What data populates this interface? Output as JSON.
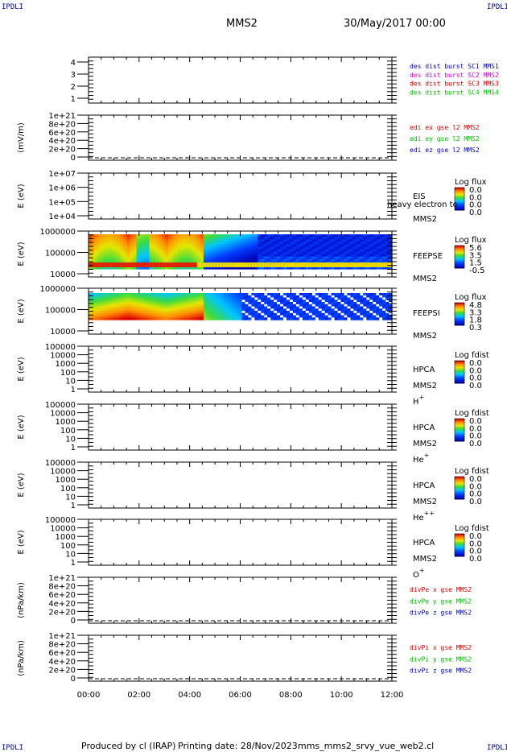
{
  "header": {
    "title": "MMS2",
    "date": "30/May/2017 00:00"
  },
  "corners": {
    "tl": "IPDLI",
    "tr": "IPDLI",
    "bl": "IPDLI",
    "br": "IPDLI"
  },
  "footer": {
    "produced": "Produced by cl (IRAP)",
    "printed": "Printing date: 28/Nov/2023",
    "file": "mms_mms2_srvy_vue_web2.cl"
  },
  "chart_data": {
    "type": "heatmap",
    "x_ticks": [
      "00:00",
      "02:00",
      "04:00",
      "06:00",
      "08:00",
      "10:00",
      "12:00"
    ],
    "colors": {
      "red": "#d40000",
      "magenta": "#d400d4",
      "green": "#00c000",
      "blue": "#0000c8"
    },
    "panels": [
      {
        "id": "des",
        "ylabel": "",
        "yticks": [
          "4",
          "3",
          "2",
          "1"
        ],
        "kind": "empty",
        "right": [
          {
            "text": "des dist burst SC1 MMS1",
            "color": "blue"
          },
          {
            "text": "des dist burst SC2 MMS2",
            "color": "magenta"
          },
          {
            "text": "des dist burst SC3 MMS3",
            "color": "red"
          },
          {
            "text": "des dist burst SC4 MMS4",
            "color": "green"
          }
        ]
      },
      {
        "id": "edi",
        "ylabel": "(mV/m)",
        "yticks": [
          "1e+21",
          "8e+20",
          "6e+20",
          "4e+20",
          "2e+20",
          "0"
        ],
        "kind": "dashed",
        "right": [
          {
            "text": "edi ex gse l2 MMS2",
            "color": "red"
          },
          {
            "text": "edi ey gse l2 MMS2",
            "color": "green"
          },
          {
            "text": "edi ez gse l2 MMS2",
            "color": "blue"
          }
        ]
      },
      {
        "id": "eis",
        "ylabel": "E (eV)",
        "yticks": [
          "1e+07",
          "1e+06",
          "1e+05",
          "1e+04"
        ],
        "kind": "empty",
        "right": [
          {
            "text": "EIS"
          },
          {
            "text": "MMS2"
          },
          {
            "text": "heavy electron to",
            "overlap": true
          }
        ],
        "cbar": {
          "title": "Log flux",
          "ticks": [
            "0.0",
            "0.0",
            "0.0",
            "0.0"
          ]
        }
      },
      {
        "id": "feepse",
        "ylabel": "E (eV)",
        "yticks": [
          "1000000",
          "100000",
          "10000"
        ],
        "kind": "feeps_e",
        "right": [
          {
            "text": "FEEPSE"
          },
          {
            "text": "MMS2"
          }
        ],
        "cbar": {
          "title": "Log flux",
          "ticks": [
            "5.6",
            "3.5",
            "1.5",
            "-0.5"
          ]
        }
      },
      {
        "id": "feepsi",
        "ylabel": "E (eV)",
        "yticks": [
          "1000000",
          "100000",
          "10000"
        ],
        "kind": "feeps_i",
        "right": [
          {
            "text": "FEEPSI"
          },
          {
            "text": "MMS2"
          }
        ],
        "cbar": {
          "title": "Log flux",
          "ticks": [
            "4.8",
            "3.3",
            "1.8",
            "0.3"
          ]
        }
      },
      {
        "id": "hpca_h",
        "ylabel": "E (eV)",
        "yticks": [
          "100000",
          "10000",
          "1000",
          "100",
          "10",
          "1"
        ],
        "kind": "empty",
        "right": [
          {
            "text": "HPCA"
          },
          {
            "text": "MMS2"
          },
          {
            "text": "H",
            "sup": "+"
          }
        ],
        "cbar": {
          "title": "Log fdist",
          "ticks": [
            "0.0",
            "0.0",
            "0.0",
            "0.0"
          ]
        }
      },
      {
        "id": "hpca_he",
        "ylabel": "E (eV)",
        "yticks": [
          "100000",
          "10000",
          "1000",
          "100",
          "10",
          "1"
        ],
        "kind": "empty",
        "right": [
          {
            "text": "HPCA"
          },
          {
            "text": "MMS2"
          },
          {
            "text": "He",
            "sup": "+"
          }
        ],
        "cbar": {
          "title": "Log fdist",
          "ticks": [
            "0.0",
            "0.0",
            "0.0",
            "0.0"
          ]
        }
      },
      {
        "id": "hpca_he2",
        "ylabel": "E (eV)",
        "yticks": [
          "100000",
          "10000",
          "1000",
          "100",
          "10",
          "1"
        ],
        "kind": "empty",
        "right": [
          {
            "text": "HPCA"
          },
          {
            "text": "MMS2"
          },
          {
            "text": "He",
            "sup": "++"
          }
        ],
        "cbar": {
          "title": "Log fdist",
          "ticks": [
            "0.0",
            "0.0",
            "0.0",
            "0.0"
          ]
        }
      },
      {
        "id": "hpca_o",
        "ylabel": "E (eV)",
        "yticks": [
          "100000",
          "10000",
          "1000",
          "100",
          "10",
          "1"
        ],
        "kind": "empty",
        "right": [
          {
            "text": "HPCA"
          },
          {
            "text": "MMS2"
          },
          {
            "text": "O",
            "sup": "+"
          }
        ],
        "cbar": {
          "title": "Log fdist",
          "ticks": [
            "0.0",
            "0.0",
            "0.0",
            "0.0"
          ]
        }
      },
      {
        "id": "divpe",
        "ylabel": "(nPa/km)",
        "yticks": [
          "1e+21",
          "8e+20",
          "6e+20",
          "4e+20",
          "2e+20",
          "0"
        ],
        "kind": "dashed",
        "right": [
          {
            "text": "divPe x gse MMS2",
            "color": "red"
          },
          {
            "text": "divPe y gse MMS2",
            "color": "green"
          },
          {
            "text": "divPe z gse MMS2",
            "color": "blue"
          }
        ]
      },
      {
        "id": "divpi",
        "ylabel": "(nPa/km)",
        "yticks": [
          "1e+21",
          "8e+20",
          "6e+20",
          "4e+20",
          "2e+20",
          "0"
        ],
        "kind": "dashed",
        "right": [
          {
            "text": "divPi x gse MMS2",
            "color": "red"
          },
          {
            "text": "divPi y gse MMS2",
            "color": "green"
          },
          {
            "text": "divPi z gse MMS2",
            "color": "blue"
          }
        ]
      }
    ]
  }
}
